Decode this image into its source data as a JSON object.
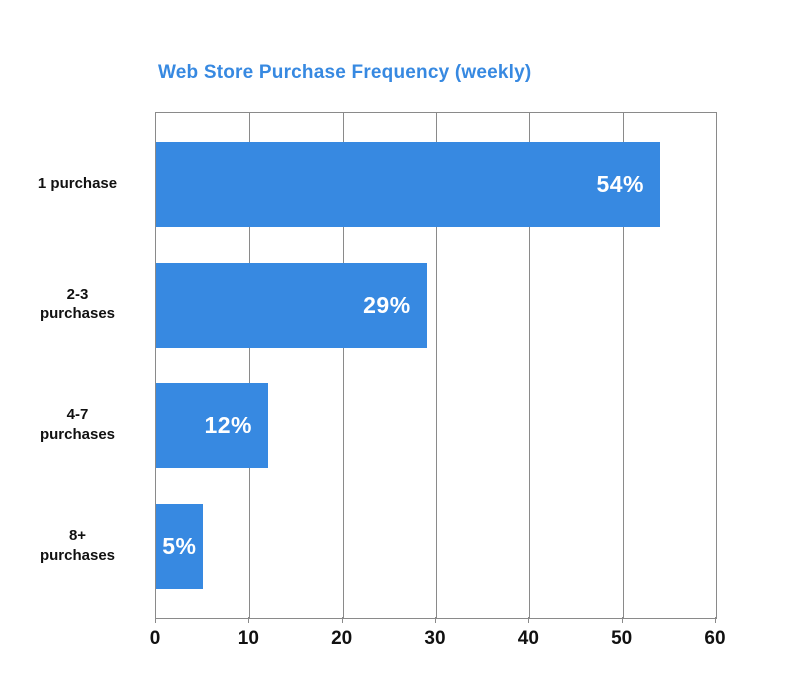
{
  "colors": {
    "accent_blue": "#3789e1",
    "grid_gray": "#8a8a8a",
    "text_black": "#111111",
    "bar_label_white": "#ffffff"
  },
  "chart_data": {
    "type": "bar",
    "orientation": "horizontal",
    "title": "Web Store Purchase Frequency (weekly)",
    "categories": [
      "1 purchase",
      "2-3\npurchases",
      "4-7\npurchases",
      "8+\npurchases"
    ],
    "values": [
      54,
      29,
      12,
      5
    ],
    "value_labels": [
      "54%",
      "29%",
      "12%",
      "5%"
    ],
    "xlabel": "",
    "ylabel": "",
    "xlim": [
      0,
      60
    ],
    "x_ticks": [
      0,
      10,
      20,
      30,
      40,
      50,
      60
    ],
    "grid": true,
    "legend": false,
    "bar_label_position": "inside-end"
  }
}
